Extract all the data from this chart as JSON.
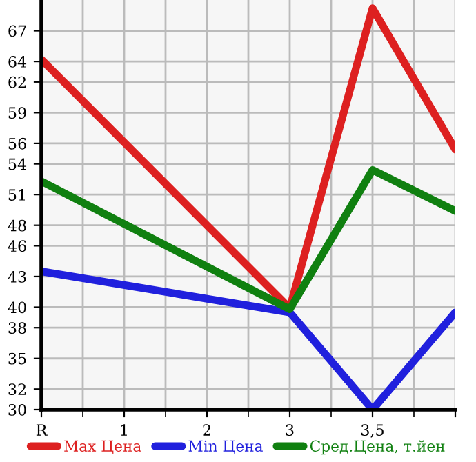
{
  "chart_data": {
    "type": "line",
    "categories": [
      "R",
      "1",
      "2",
      "3",
      "3,5",
      null
    ],
    "series": [
      {
        "name": "Max Цена",
        "color": "#dd2020",
        "values": [
          64.2,
          null,
          null,
          39.9,
          69.2,
          55.4
        ]
      },
      {
        "name": "Min Цена",
        "color": "#2020dd",
        "values": [
          43.5,
          null,
          null,
          39.5,
          30,
          39.5
        ]
      },
      {
        "name": "Сред.Цена, т.йен",
        "color": "#108010",
        "values": [
          52.3,
          null,
          null,
          39.8,
          53.4,
          49.4
        ]
      }
    ],
    "ylim": [
      30,
      70
    ],
    "yticks": [
      30,
      32,
      35,
      38,
      40,
      43,
      46,
      48,
      51,
      54,
      56,
      59,
      62,
      64,
      67
    ],
    "grid": true,
    "legend": "bottom",
    "marker": "none",
    "line_style": "solid"
  }
}
